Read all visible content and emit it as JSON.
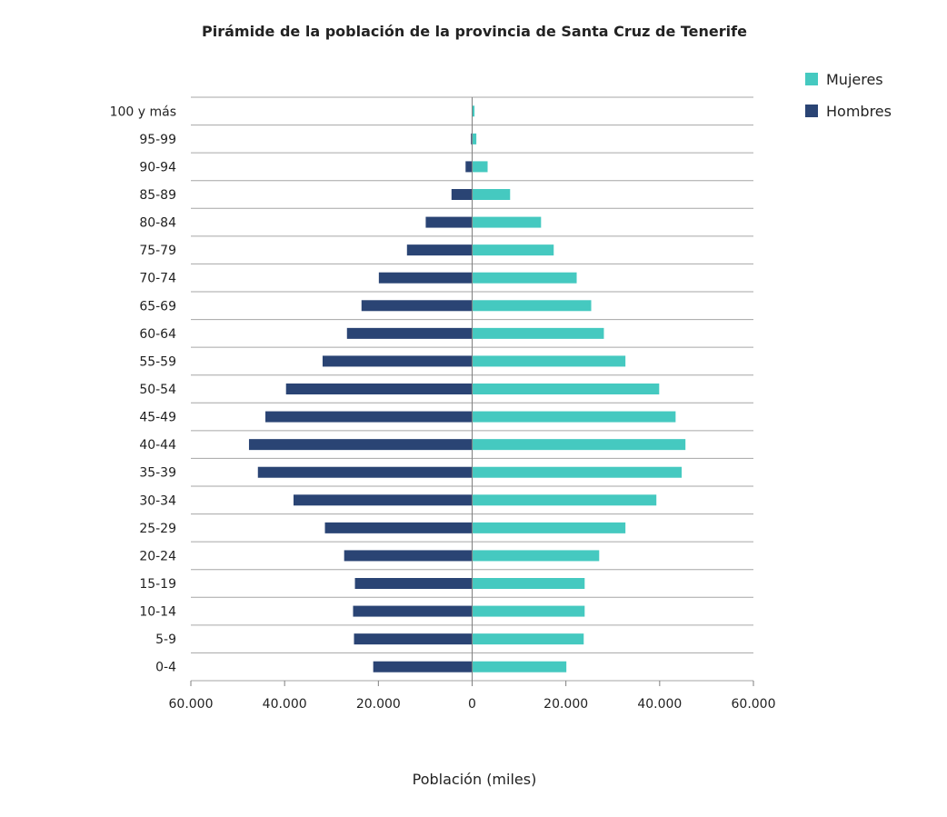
{
  "chart_data": {
    "type": "bar",
    "orientation": "horizontal-pyramid",
    "title": "Pirámide de la población de la provincia de Santa Cruz de Tenerife",
    "xlabel": "Población (miles)",
    "ylabel": "",
    "xlim": [
      -60000,
      60000
    ],
    "x_ticks": [
      "60.000",
      "40.000",
      "20.000",
      "0",
      "20.000",
      "40.000",
      "60.000"
    ],
    "x_tick_values": [
      -60000,
      -40000,
      -20000,
      0,
      20000,
      40000,
      60000
    ],
    "grid": "horizontal",
    "legend_position": "top-right",
    "categories": [
      "100 y más",
      "95-99",
      "90-94",
      "85-89",
      "80-84",
      "75-79",
      "70-74",
      "65-69",
      "60-64",
      "55-59",
      "50-54",
      "45-49",
      "40-44",
      "35-39",
      "30-34",
      "25-29",
      "20-24",
      "15-19",
      "10-14",
      "5-9",
      "0-4"
    ],
    "series": [
      {
        "name": "Mujeres",
        "color": "#45c9c0",
        "side": "right",
        "values": [
          500,
          900,
          3300,
          8100,
          14700,
          17400,
          22300,
          25400,
          28100,
          32700,
          39900,
          43400,
          45500,
          44700,
          39300,
          32700,
          27100,
          24000,
          24000,
          23800,
          20100
        ]
      },
      {
        "name": "Hombres",
        "color": "#2a4474",
        "side": "left",
        "values": [
          0,
          250,
          1400,
          4400,
          9900,
          13900,
          19900,
          23600,
          26700,
          31900,
          39700,
          44100,
          47600,
          45700,
          38100,
          31400,
          27300,
          25000,
          25400,
          25200,
          21100
        ]
      }
    ]
  }
}
